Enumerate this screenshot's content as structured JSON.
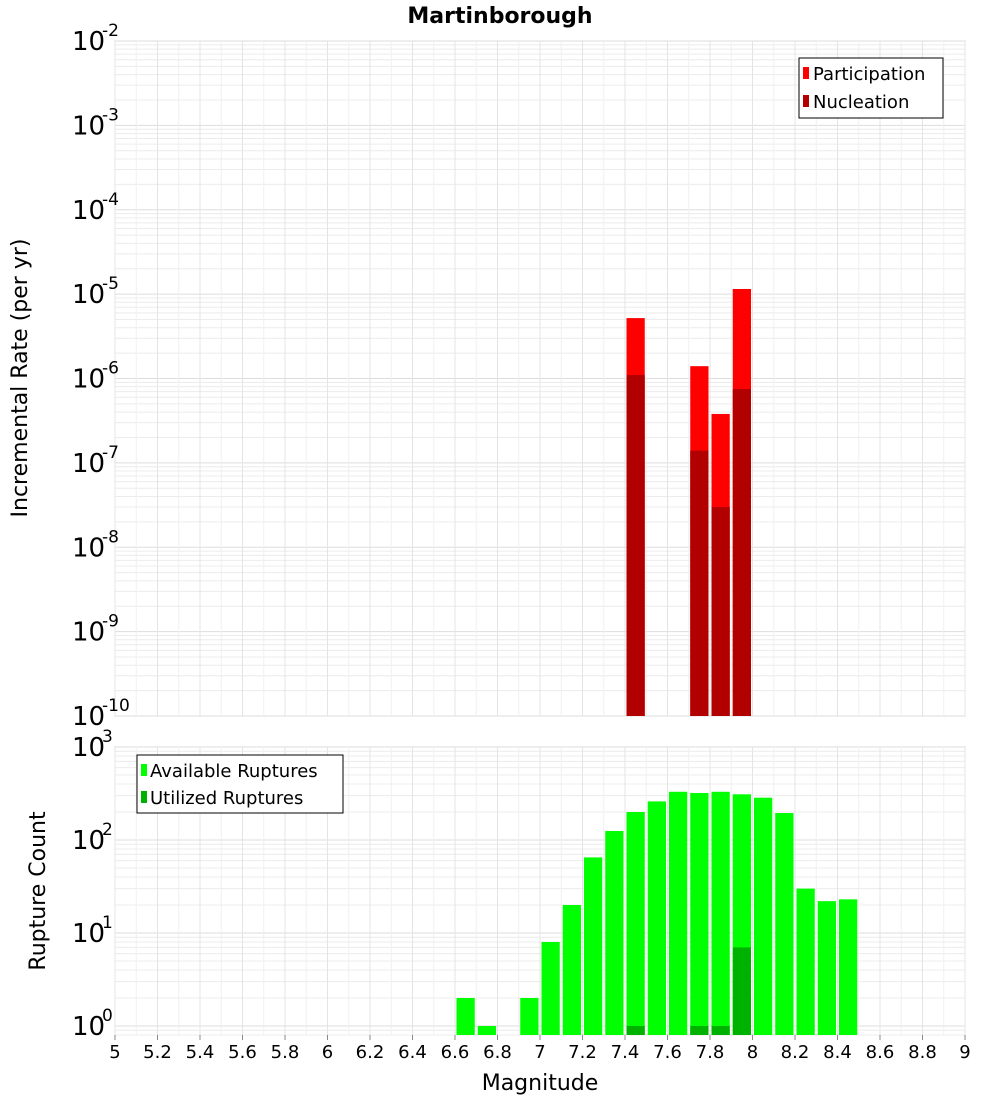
{
  "chart_data": [
    {
      "type": "bar",
      "title": "Martinborough",
      "xlabel": "",
      "ylabel": "Incremental Rate (per yr)",
      "yscale": "log",
      "ylim": [
        1e-10,
        0.01
      ],
      "xlim": [
        5,
        9
      ],
      "grid": true,
      "legend_placement": "top-right",
      "y_tick_labels": [
        {
          "base": "10",
          "exp": "-10"
        },
        {
          "base": "10",
          "exp": "-9"
        },
        {
          "base": "10",
          "exp": "-8"
        },
        {
          "base": "10",
          "exp": "-7"
        },
        {
          "base": "10",
          "exp": "-6"
        },
        {
          "base": "10",
          "exp": "-5"
        },
        {
          "base": "10",
          "exp": "-4"
        },
        {
          "base": "10",
          "exp": "-3"
        },
        {
          "base": "10",
          "exp": "-2"
        }
      ],
      "series": [
        {
          "name": "Participation",
          "color": "#ff0000",
          "x": [
            7.45,
            7.75,
            7.85,
            7.95
          ],
          "values": [
            5.2e-06,
            1.4e-06,
            3.8e-07,
            1.15e-05
          ]
        },
        {
          "name": "Nucleation",
          "color": "#b20000",
          "x": [
            7.45,
            7.75,
            7.85,
            7.95
          ],
          "values": [
            1.1e-06,
            1.4e-07,
            3e-08,
            7.5e-07
          ]
        }
      ]
    },
    {
      "type": "bar",
      "title": "",
      "xlabel": "Magnitude",
      "ylabel": "Rupture Count",
      "yscale": "log",
      "ylim": [
        0.8,
        1000
      ],
      "xlim": [
        5,
        9
      ],
      "grid": true,
      "legend_placement": "top-left",
      "y_tick_labels": [
        {
          "base": "10",
          "exp": "0"
        },
        {
          "base": "10",
          "exp": "1"
        },
        {
          "base": "10",
          "exp": "2"
        },
        {
          "base": "10",
          "exp": "3"
        }
      ],
      "x_ticks": [
        "5",
        "5.2",
        "5.4",
        "5.6",
        "5.8",
        "6",
        "6.2",
        "6.4",
        "6.6",
        "6.8",
        "7",
        "7.2",
        "7.4",
        "7.6",
        "7.8",
        "8",
        "8.2",
        "8.4",
        "8.6",
        "8.8",
        "9"
      ],
      "series": [
        {
          "name": "Available Ruptures",
          "color": "#00ff00",
          "x": [
            6.65,
            6.75,
            6.95,
            7.05,
            7.15,
            7.25,
            7.35,
            7.45,
            7.55,
            7.65,
            7.75,
            7.85,
            7.95,
            8.05,
            8.15,
            8.25,
            8.35,
            8.45
          ],
          "values": [
            2,
            1,
            2,
            8,
            20,
            65,
            125,
            200,
            260,
            330,
            320,
            330,
            310,
            285,
            195,
            30,
            22,
            23
          ]
        },
        {
          "name": "Utilized Ruptures",
          "color": "#00b200",
          "x": [
            7.45,
            7.75,
            7.85,
            7.95
          ],
          "values": [
            1,
            1,
            1,
            7
          ]
        }
      ]
    }
  ]
}
